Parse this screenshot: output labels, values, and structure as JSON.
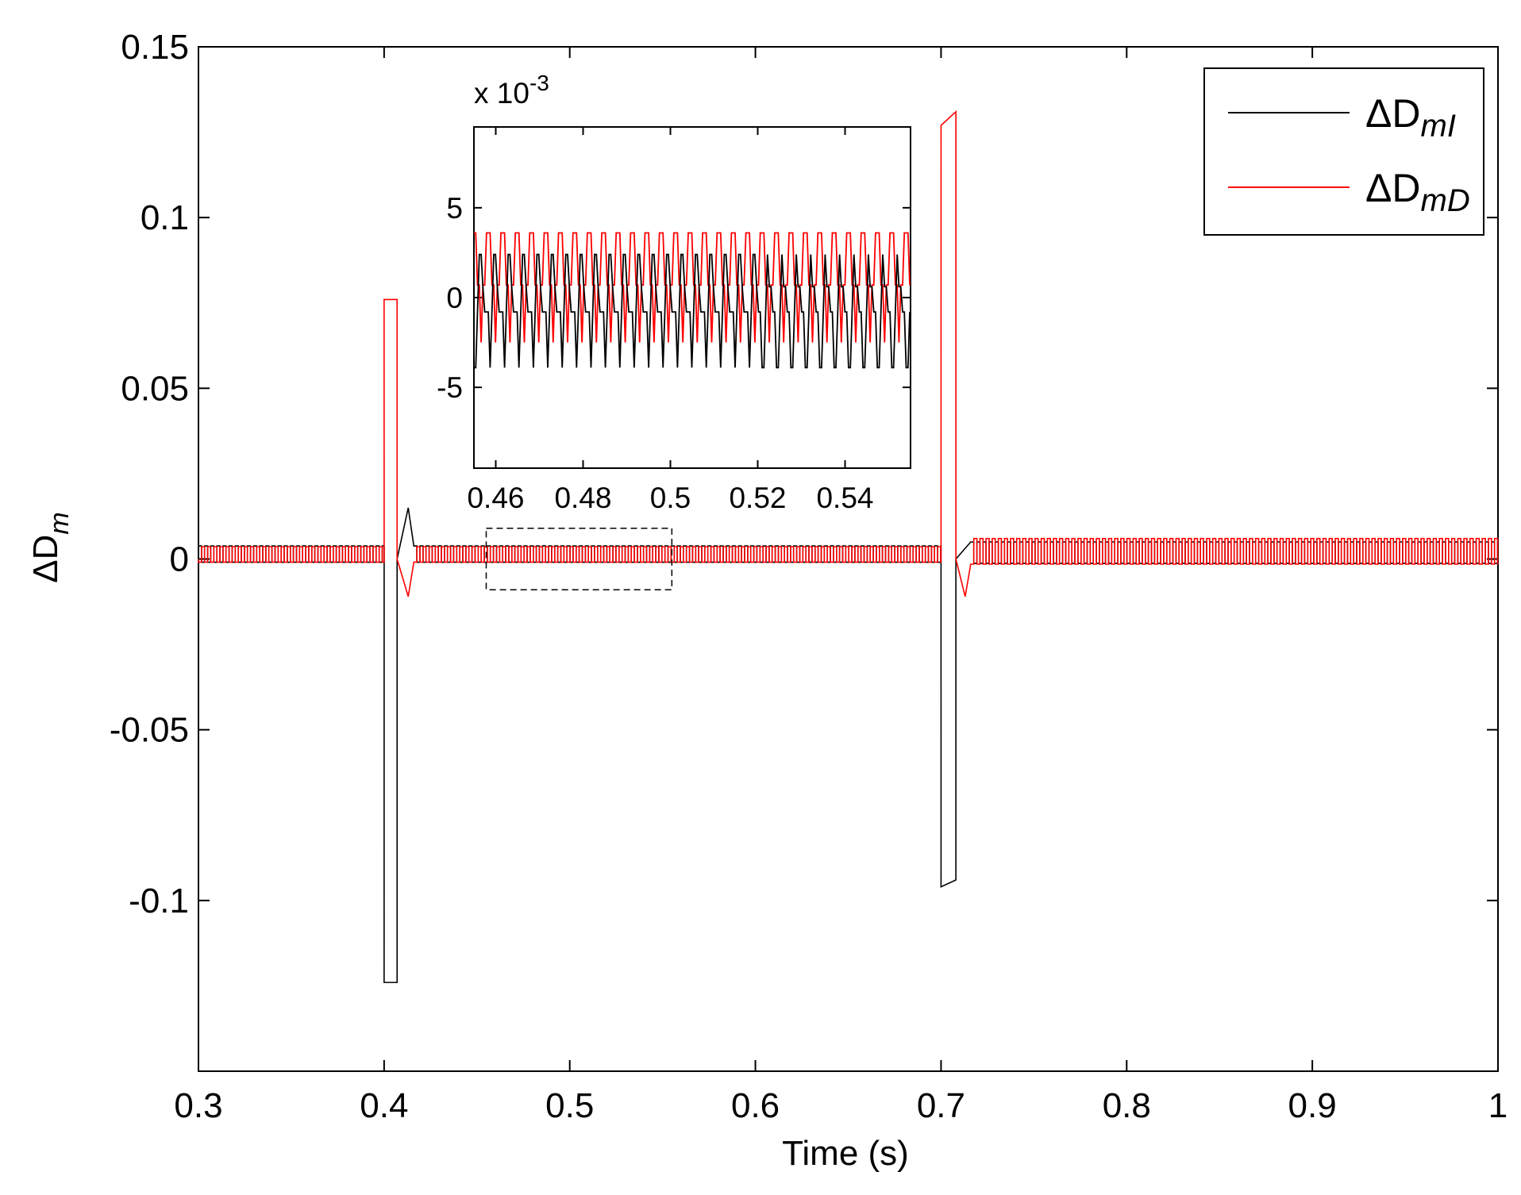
{
  "chart_data": {
    "type": "line",
    "title": "",
    "xlabel": "Time (s)",
    "ylabel": "ΔD",
    "ylabel_sub": "m",
    "xlim": [
      0.3,
      1.0
    ],
    "ylim": [
      -0.15,
      0.15
    ],
    "x_ticks": [
      "0.3",
      "0.4",
      "0.5",
      "0.6",
      "0.7",
      "0.8",
      "0.9",
      "1"
    ],
    "y_ticks": [
      "0.15",
      "0.1",
      "0.05",
      "0",
      "-0.05",
      "-0.1"
    ],
    "grid": false,
    "legend_position": "top-right",
    "series": [
      {
        "name": "ΔD",
        "subscript": "mI",
        "color": "#000000",
        "description_points": [
          {
            "t": 0.3,
            "v": 0.0
          },
          {
            "t": 0.4,
            "v": 0.0
          },
          {
            "t": 0.4,
            "v": -0.124
          },
          {
            "t": 0.407,
            "v": -0.124
          },
          {
            "t": 0.407,
            "v": 0.0
          },
          {
            "t": 0.413,
            "v": 0.015
          },
          {
            "t": 0.7,
            "v": 0.0
          },
          {
            "t": 0.7,
            "v": -0.096
          },
          {
            "t": 0.708,
            "v": -0.094
          },
          {
            "t": 0.708,
            "v": 0.0
          },
          {
            "t": 1.0,
            "v": 0.0
          }
        ],
        "ripple_amplitude_before_0.7": 0.0038,
        "ripple_amplitude_after_0.7": 0.005
      },
      {
        "name": "ΔD",
        "subscript": "mD",
        "color": "#ff0000",
        "description_points": [
          {
            "t": 0.3,
            "v": 0.0
          },
          {
            "t": 0.4,
            "v": 0.0
          },
          {
            "t": 0.4,
            "v": 0.076
          },
          {
            "t": 0.407,
            "v": 0.076
          },
          {
            "t": 0.407,
            "v": 0.0
          },
          {
            "t": 0.413,
            "v": -0.011
          },
          {
            "t": 0.7,
            "v": 0.0
          },
          {
            "t": 0.7,
            "v": 0.127
          },
          {
            "t": 0.708,
            "v": 0.131
          },
          {
            "t": 0.708,
            "v": 0.0
          },
          {
            "t": 0.713,
            "v": -0.011
          },
          {
            "t": 1.0,
            "v": 0.0
          }
        ],
        "ripple_amplitude_before_0.7": 0.0036,
        "ripple_amplitude_after_0.7": 0.006
      }
    ],
    "zoom_box": {
      "x": [
        0.455,
        0.555
      ],
      "y": [
        -0.009,
        0.009
      ]
    },
    "inset": {
      "xlim": [
        0.455,
        0.555
      ],
      "ylim": [
        -0.0095,
        0.0095
      ],
      "x_ticks": [
        "0.46",
        "0.48",
        "0.5",
        "0.52",
        "0.54"
      ],
      "y_ticks": [
        "5",
        "0",
        "-5"
      ],
      "exponent_prefix": "x 10",
      "exponent_power": "-3",
      "series": [
        {
          "name": "ΔD",
          "subscript": "mI",
          "color": "#000000",
          "min": -0.0039,
          "max": 0.0024,
          "period": 0.0033
        },
        {
          "name": "ΔD",
          "subscript": "mD",
          "color": "#ff0000",
          "min": -0.0025,
          "max": 0.0036,
          "period": 0.0033
        }
      ]
    }
  }
}
